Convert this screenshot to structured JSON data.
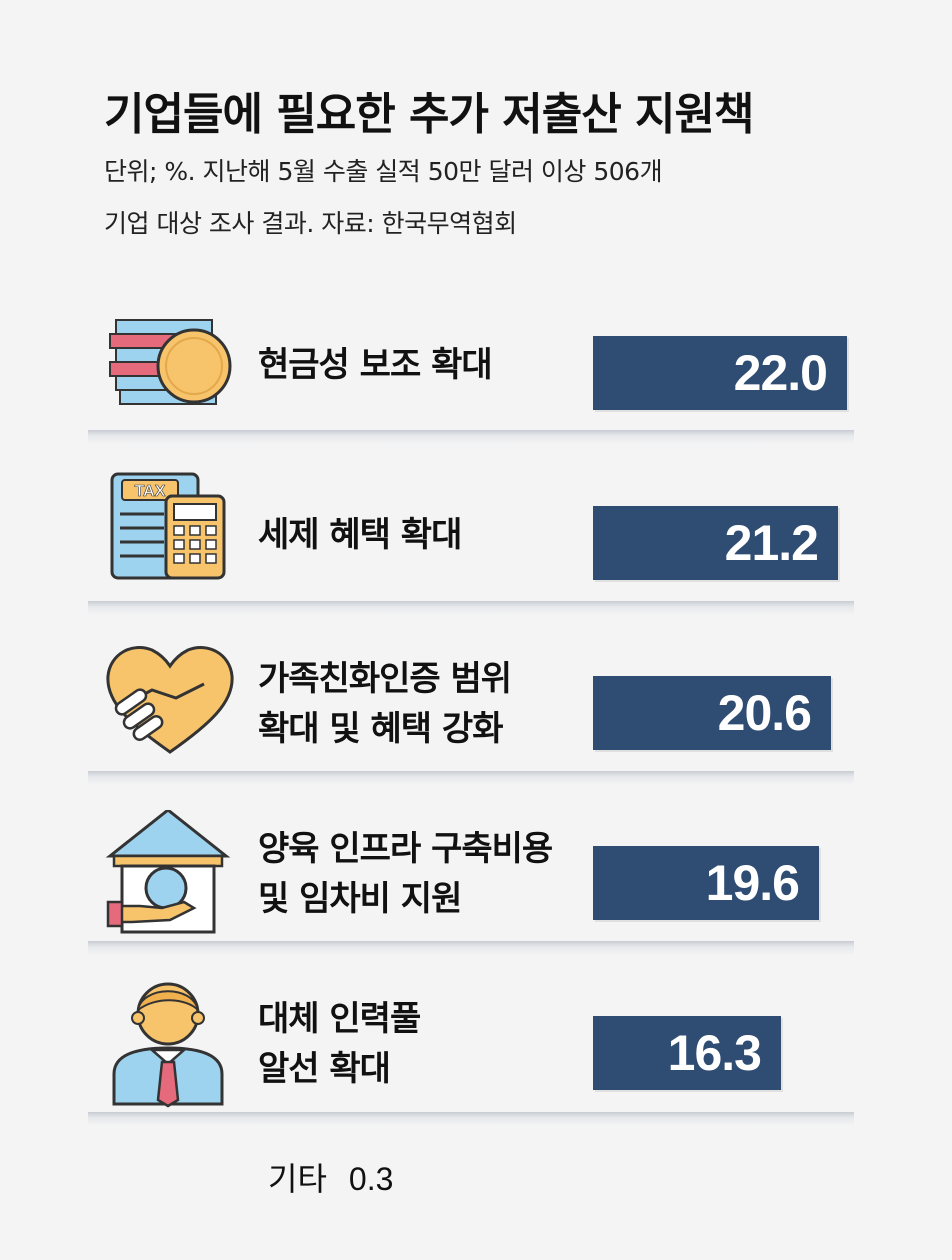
{
  "title": "기업들에 필요한 추가 저출산 지원책",
  "subtitle_line1": "단위; %. 지난해 5월 수출 실적 50만 달러 이상 506개",
  "subtitle_line2": "기업 대상 조사 결과.   자료: 한국무역협회",
  "colors": {
    "bar": "#2f4c72",
    "icon_yellow": "#f7c46c",
    "icon_blue": "#9dd3ee",
    "icon_red": "#e56a7b"
  },
  "chart_data": {
    "type": "bar",
    "orientation": "horizontal",
    "categories": [
      "현금성 보조 확대",
      "세제 혜택 확대",
      "가족친화인증 범위\n확대 및 혜택 강화",
      "양육 인프라 구축비용\n및 임차비 지원",
      "대체 인력풀\n알선 확대"
    ],
    "values": [
      22.0,
      21.2,
      20.6,
      19.6,
      16.3
    ],
    "value_labels": [
      "22.0",
      "21.2",
      "20.6",
      "19.6",
      "16.3"
    ],
    "icons": [
      "coins-icon",
      "tax-calculator-icon",
      "handshake-heart-icon",
      "house-hand-icon",
      "person-tie-icon"
    ],
    "other": {
      "label": "기타",
      "value": "0.3"
    }
  }
}
